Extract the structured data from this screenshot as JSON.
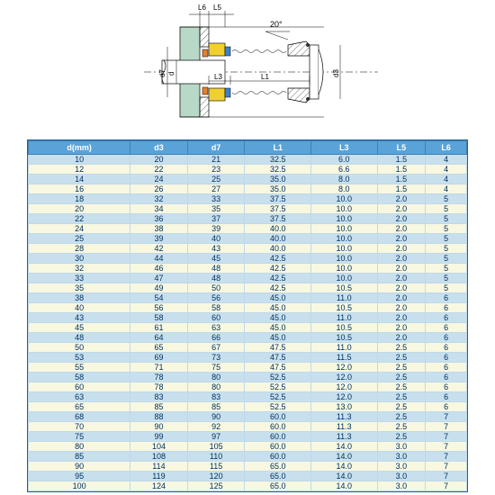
{
  "diagram": {
    "labels": {
      "L6": "L6",
      "L5": "L5",
      "L3": "L3",
      "L1": "L1",
      "d": "d",
      "d7": "d7",
      "d3": "d3",
      "angle": "20°"
    },
    "colors": {
      "shaft_fill": "#b8d8c8",
      "housing_fill": "#d0d0d0",
      "seal_body": "#f0d030",
      "spring": "#808080",
      "blue_part": "#4080d0",
      "orange_part": "#e08030",
      "hatch": "#000",
      "line": "#000",
      "dimline": "#000",
      "centerline": "#000"
    }
  },
  "table": {
    "header_bg": "#5aa3d8",
    "header_fg": "#ffffff",
    "row_odd_bg": "#c8e0ee",
    "row_even_bg": "#f8f8e0",
    "border": "#4080b0",
    "columns": [
      "d(mm)",
      "d3",
      "d7",
      "L1",
      "L3",
      "L5",
      "L6"
    ],
    "rows": [
      [
        10,
        20,
        21,
        "32.5",
        "6.0",
        "1.5",
        4
      ],
      [
        12,
        22,
        23,
        "32.5",
        "6.6",
        "1.5",
        4
      ],
      [
        14,
        24,
        25,
        "35.0",
        "8.0",
        "1.5",
        4
      ],
      [
        16,
        26,
        27,
        "35.0",
        "8.0",
        "1.5",
        4
      ],
      [
        18,
        32,
        33,
        "37.5",
        "10.0",
        "2.0",
        5
      ],
      [
        20,
        34,
        35,
        "37.5",
        "10.0",
        "2.0",
        5
      ],
      [
        22,
        36,
        37,
        "37.5",
        "10.0",
        "2.0",
        5
      ],
      [
        24,
        38,
        39,
        "40.0",
        "10.0",
        "2.0",
        5
      ],
      [
        25,
        39,
        40,
        "40.0",
        "10.0",
        "2.0",
        5
      ],
      [
        28,
        42,
        43,
        "40.0",
        "10.0",
        "2.0",
        5
      ],
      [
        30,
        44,
        45,
        "42.5",
        "10.0",
        "2.0",
        5
      ],
      [
        32,
        46,
        48,
        "42.5",
        "10.0",
        "2.0",
        5
      ],
      [
        33,
        47,
        48,
        "42.5",
        "10.0",
        "2.0",
        5
      ],
      [
        35,
        49,
        50,
        "42.5",
        "10.5",
        "2.0",
        5
      ],
      [
        38,
        54,
        56,
        "45.0",
        "11.0",
        "2.0",
        6
      ],
      [
        40,
        56,
        58,
        "45.0",
        "10.5",
        "2.0",
        6
      ],
      [
        43,
        58,
        60,
        "45.0",
        "11.0",
        "2.0",
        6
      ],
      [
        45,
        61,
        63,
        "45.0",
        "10.5",
        "2.0",
        6
      ],
      [
        48,
        64,
        66,
        "45.0",
        "10.5",
        "2.0",
        6
      ],
      [
        50,
        65,
        67,
        "47.5",
        "11.0",
        "2.5",
        6
      ],
      [
        53,
        69,
        73,
        "47.5",
        "11.5",
        "2.5",
        6
      ],
      [
        55,
        71,
        75,
        "47.5",
        "12.0",
        "2.5",
        6
      ],
      [
        58,
        78,
        80,
        "52.5",
        "12.0",
        "2.5",
        6
      ],
      [
        60,
        78,
        80,
        "52.5",
        "12.0",
        "2.5",
        6
      ],
      [
        63,
        83,
        83,
        "52.5",
        "12.0",
        "2.5",
        6
      ],
      [
        65,
        85,
        85,
        "52.5",
        "13.0",
        "2.5",
        6
      ],
      [
        68,
        88,
        90,
        "60.0",
        "11.3",
        "2.5",
        7
      ],
      [
        70,
        90,
        92,
        "60.0",
        "11.3",
        "2.5",
        7
      ],
      [
        75,
        99,
        97,
        "60.0",
        "11.3",
        "2.5",
        7
      ],
      [
        80,
        104,
        105,
        "60.0",
        "14.0",
        "3.0",
        7
      ],
      [
        85,
        108,
        110,
        "60.0",
        "14.0",
        "3.0",
        7
      ],
      [
        90,
        114,
        115,
        "65.0",
        "14.0",
        "3.0",
        7
      ],
      [
        95,
        119,
        120,
        "65.0",
        "14.0",
        "3.0",
        7
      ],
      [
        100,
        124,
        125,
        "65.0",
        "14.0",
        "3.0",
        7
      ]
    ]
  }
}
